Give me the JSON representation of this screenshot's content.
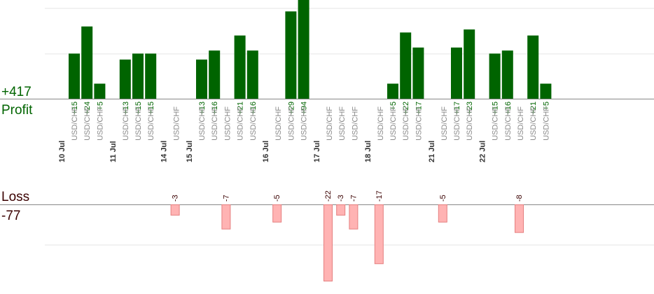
{
  "summary": {
    "profit_total": "+417",
    "profit_label": "Profit",
    "loss_label": "Loss",
    "loss_total": "-77"
  },
  "colors": {
    "profit_bar": "#006400",
    "profit_text": "#006400",
    "loss_bar": "#ffb3b3",
    "loss_bar_stroke": "#e57f7f",
    "loss_text": "#3a0000",
    "axis": "#888888",
    "grid": "#e6e6e6"
  },
  "chart_data": {
    "type": "bar",
    "grid": true,
    "profit_scale_max": 30,
    "loss_scale_max": 23,
    "days": [
      {
        "date": "10 Jul",
        "trades": [
          {
            "pair": "USD/CHF",
            "value": 15,
            "label": "+15"
          },
          {
            "pair": "USD/CHF",
            "value": 24,
            "label": "+24"
          },
          {
            "pair": "USD/CHF",
            "value": 5,
            "label": "+5"
          }
        ]
      },
      {
        "date": "11 Jul",
        "trades": [
          {
            "pair": "USD/CHF",
            "value": 13,
            "label": "+13"
          },
          {
            "pair": "USD/CHF",
            "value": 15,
            "label": "+15"
          },
          {
            "pair": "USD/CHF",
            "value": 15,
            "label": "+15"
          }
        ]
      },
      {
        "date": "14 Jul",
        "trades": [
          {
            "pair": "USD/CHF",
            "value": -3,
            "label": "-3"
          }
        ]
      },
      {
        "date": "15 Jul",
        "trades": [
          {
            "pair": "USD/CHF",
            "value": 13,
            "label": "+13"
          },
          {
            "pair": "USD/CHF",
            "value": 16,
            "label": "+16"
          },
          {
            "pair": "USD/CHF",
            "value": -7,
            "label": "-7"
          },
          {
            "pair": "USD/CHF",
            "value": 21,
            "label": "+21"
          },
          {
            "pair": "USD/CHF",
            "value": 16,
            "label": "+16"
          }
        ]
      },
      {
        "date": "16 Jul",
        "trades": [
          {
            "pair": "USD/CHF",
            "value": -5,
            "label": "-5"
          },
          {
            "pair": "USD/CHF",
            "value": 29,
            "label": "+29"
          },
          {
            "pair": "USD/CHF",
            "value": 94,
            "label": "+94"
          }
        ]
      },
      {
        "date": "17 Jul",
        "trades": [
          {
            "pair": "USD/CHF",
            "value": -22,
            "label": "-22"
          },
          {
            "pair": "USD/CHF",
            "value": -3,
            "label": "-3"
          },
          {
            "pair": "USD/CHF",
            "value": -7,
            "label": "-7"
          }
        ]
      },
      {
        "date": "18 Jul",
        "trades": [
          {
            "pair": "USD/CHF",
            "value": -17,
            "label": "-17"
          },
          {
            "pair": "USD/CHF",
            "value": 5,
            "label": "+5"
          },
          {
            "pair": "USD/CHF",
            "value": 22,
            "label": "+22"
          },
          {
            "pair": "USD/CHF",
            "value": 17,
            "label": "+17"
          }
        ]
      },
      {
        "date": "21 Jul",
        "trades": [
          {
            "pair": "USD/CHF",
            "value": -5,
            "label": "-5"
          },
          {
            "pair": "USD/CHF",
            "value": 17,
            "label": "+17"
          },
          {
            "pair": "USD/CHF",
            "value": 23,
            "label": "+23"
          }
        ]
      },
      {
        "date": "22 Jul",
        "trades": [
          {
            "pair": "USD/CHF",
            "value": 15,
            "label": "+15"
          },
          {
            "pair": "USD/CHF",
            "value": 16,
            "label": "+16"
          },
          {
            "pair": "USD/CHF",
            "value": -8,
            "label": "-8"
          },
          {
            "pair": "USD/CHF",
            "value": 21,
            "label": "+21"
          },
          {
            "pair": "USD/CHF",
            "value": 5,
            "label": "+5"
          }
        ]
      }
    ]
  }
}
